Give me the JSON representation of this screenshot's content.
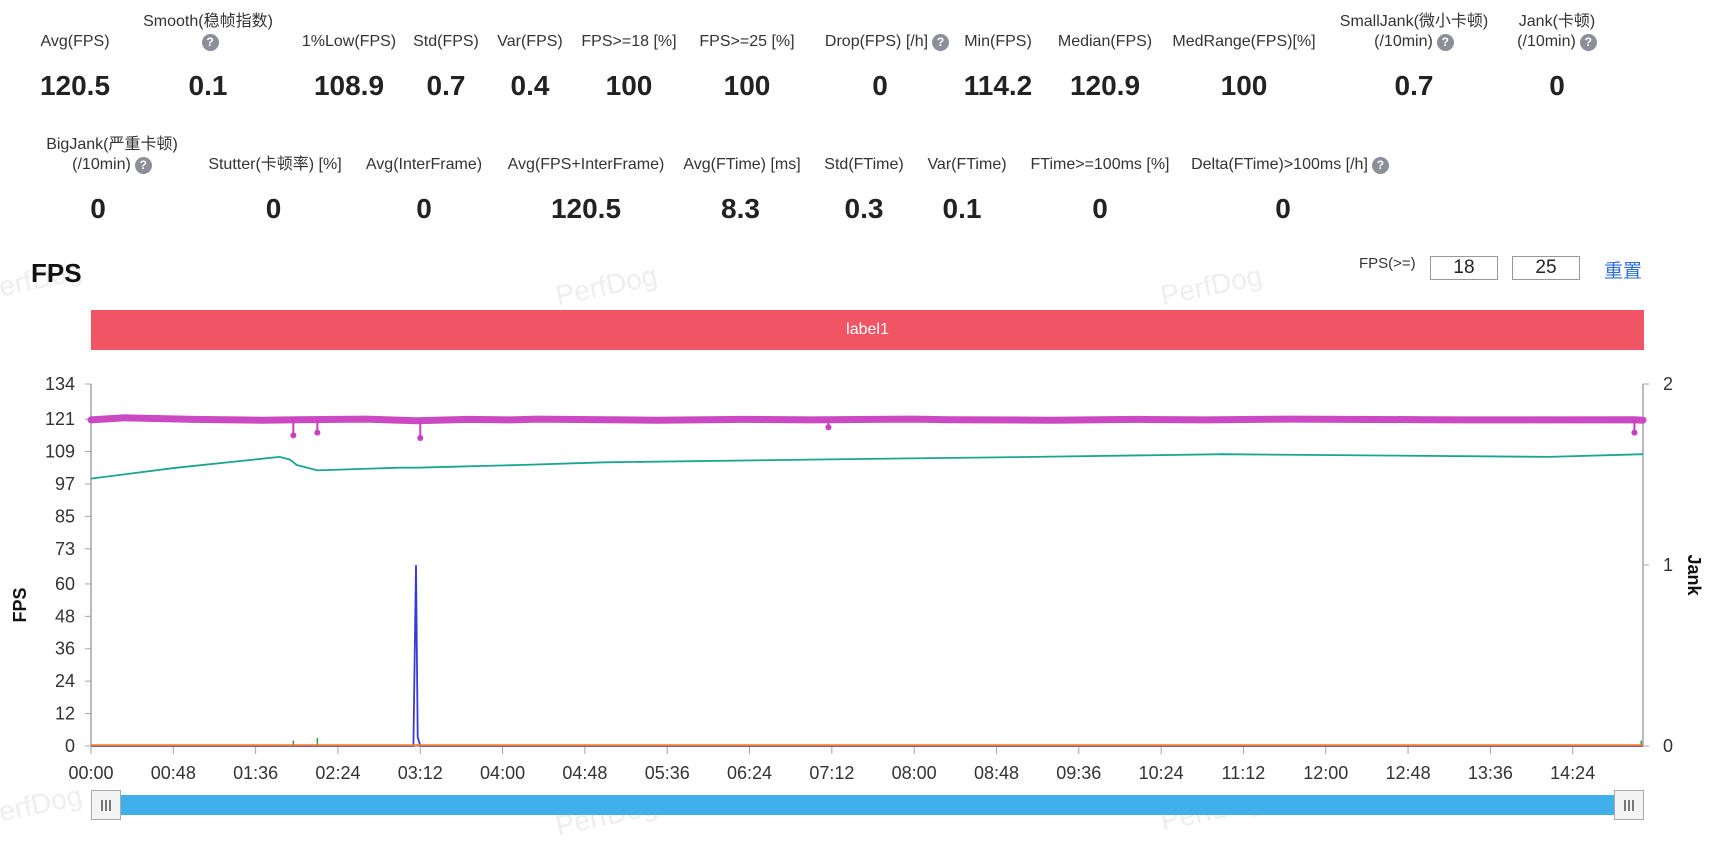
{
  "stats_row1": [
    {
      "label": "Avg(FPS)",
      "value": "120.5"
    },
    {
      "label": "Smooth(稳帧指数)",
      "value": "0.1",
      "help": true
    },
    {
      "label": "1%Low(FPS)",
      "value": "108.9"
    },
    {
      "label": "Std(FPS)",
      "value": "0.7"
    },
    {
      "label": "Var(FPS)",
      "value": "0.4"
    },
    {
      "label": "FPS>=18 [%]",
      "value": "100"
    },
    {
      "label": "FPS>=25 [%]",
      "value": "100"
    },
    {
      "label": "Drop(FPS) [/h]",
      "value": "0",
      "help": true
    },
    {
      "label": "Min(FPS)",
      "value": "114.2"
    },
    {
      "label": "Median(FPS)",
      "value": "120.9"
    },
    {
      "label": "MedRange(FPS)[%]",
      "value": "100"
    },
    {
      "label": "SmallJank(微小卡顿)",
      "label2": "(/10min)",
      "value": "0.7",
      "help": true
    },
    {
      "label": "Jank(卡顿)",
      "label2": "(/10min)",
      "value": "0",
      "help": true
    }
  ],
  "stats_row2": [
    {
      "label": "BigJank(严重卡顿)",
      "label2": "(/10min)",
      "value": "0",
      "help": true
    },
    {
      "label": "Stutter(卡顿率) [%]",
      "value": "0"
    },
    {
      "label": "Avg(InterFrame)",
      "value": "0"
    },
    {
      "label": "Avg(FPS+InterFrame)",
      "value": "120.5"
    },
    {
      "label": "Avg(FTime) [ms]",
      "value": "8.3"
    },
    {
      "label": "Std(FTime)",
      "value": "0.3"
    },
    {
      "label": "Var(FTime)",
      "value": "0.1"
    },
    {
      "label": "FTime>=100ms [%]",
      "value": "0"
    },
    {
      "label": "Delta(FTime)>100ms [/h]",
      "value": "0",
      "help": true
    }
  ],
  "help_glyph": "?",
  "section_title": "FPS",
  "threshold": {
    "label": "FPS(>=)",
    "value1": "18",
    "value2": "25",
    "reset_label": "重置"
  },
  "label_bar": {
    "text": "label1",
    "color": "#ef5565"
  },
  "watermark": "PerfDog",
  "chart_data": {
    "type": "line",
    "x_ticks": [
      "00:00",
      "00:48",
      "01:36",
      "02:24",
      "03:12",
      "04:00",
      "04:48",
      "05:36",
      "06:24",
      "07:12",
      "08:00",
      "08:48",
      "09:36",
      "10:24",
      "11:12",
      "12:00",
      "12:48",
      "13:36",
      "14:24"
    ],
    "y_ticks": [
      "134",
      "121",
      "109",
      "97",
      "85",
      "73",
      "60",
      "48",
      "36",
      "24",
      "12",
      "0"
    ],
    "ylabel": "FPS",
    "y2label": "Jank",
    "y2_ticks": [
      "2",
      "1",
      "0"
    ],
    "ylim": [
      0,
      134
    ],
    "y2lim": [
      0,
      2
    ],
    "xlim_seconds": [
      0,
      905
    ],
    "series": [
      {
        "axis": "left",
        "color": "#c83fbf",
        "style": "dots",
        "x": [
          0,
          20,
          60,
          100,
          120,
          160,
          190,
          220,
          245,
          260,
          300,
          330,
          380,
          420,
          480,
          500,
          560,
          610,
          650,
          700,
          780,
          800,
          900,
          905
        ],
        "y": [
          120.7,
          121.5,
          120.9,
          120.6,
          120.8,
          121.0,
          120.4,
          120.9,
          120.7,
          121.0,
          120.8,
          120.6,
          120.9,
          120.7,
          121.0,
          120.8,
          120.6,
          120.9,
          120.7,
          121.0,
          120.8,
          120.7,
          120.8,
          120.6
        ],
        "dips": [
          [
            118,
            115
          ],
          [
            132,
            116
          ],
          [
            192,
            114
          ],
          [
            430,
            118
          ],
          [
            900,
            116
          ]
        ]
      },
      {
        "axis": "left",
        "color": "#1aa590",
        "x": [
          0,
          50,
          110,
          116,
          120,
          132,
          180,
          190,
          250,
          300,
          420,
          550,
          660,
          850,
          905
        ],
        "y": [
          99,
          103,
          107,
          106,
          104,
          102,
          103,
          103,
          104,
          105,
          106,
          107,
          108,
          107,
          108
        ]
      },
      {
        "axis": "right",
        "color": "#3a3ad6",
        "x": [
          0,
          188,
          189.5,
          190.5,
          192,
          905
        ],
        "y": [
          0,
          0,
          1.0,
          0.05,
          0,
          0
        ]
      },
      {
        "axis": "left",
        "color": "#2fa02f",
        "style": "tiny-spikes",
        "spikes": [
          [
            118,
            2
          ],
          [
            132,
            3
          ],
          [
            904,
            2
          ]
        ]
      },
      {
        "axis": "left",
        "color": "#f07d2f",
        "style": "baseline",
        "y_const": 0.3
      }
    ]
  },
  "slider": {
    "color": "#3fb0ea",
    "left_handle_icon": "grip-icon",
    "right_handle_icon": "grip-icon"
  }
}
